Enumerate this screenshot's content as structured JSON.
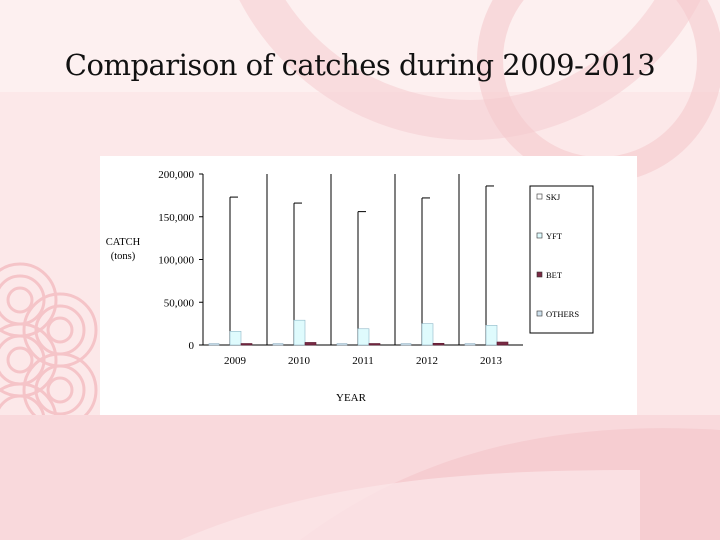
{
  "slide": {
    "title": "Comparison of catches during 2009-2013"
  },
  "chart_data": {
    "type": "bar",
    "title": "",
    "xlabel": "YEAR",
    "ylabel": "CATCH\n(tons)",
    "ylim": [
      0,
      200000
    ],
    "yticks": [
      "0",
      "50,000",
      "100,000",
      "150,000",
      "200,000"
    ],
    "categories": [
      "2009",
      "2010",
      "2011",
      "2012",
      "2013"
    ],
    "series": [
      {
        "name": "OTHERS",
        "color": "#cfe2ee",
        "values": [
          1000,
          1000,
          1000,
          1000,
          1000
        ]
      },
      {
        "name": "SKJ",
        "color": "#ffffff",
        "values": [
          173000,
          166000,
          156000,
          172000,
          186000
        ]
      },
      {
        "name": "YFT",
        "color": "#dffbfd",
        "values": [
          16000,
          29000,
          19000,
          25000,
          23000
        ]
      },
      {
        "name": "BET",
        "color": "#7a2a44",
        "values": [
          1500,
          3000,
          1500,
          2000,
          3500
        ]
      }
    ],
    "legend": {
      "position": "right",
      "order": [
        "SKJ",
        "YFT",
        "BET",
        "OTHERS"
      ]
    },
    "grid": false
  }
}
